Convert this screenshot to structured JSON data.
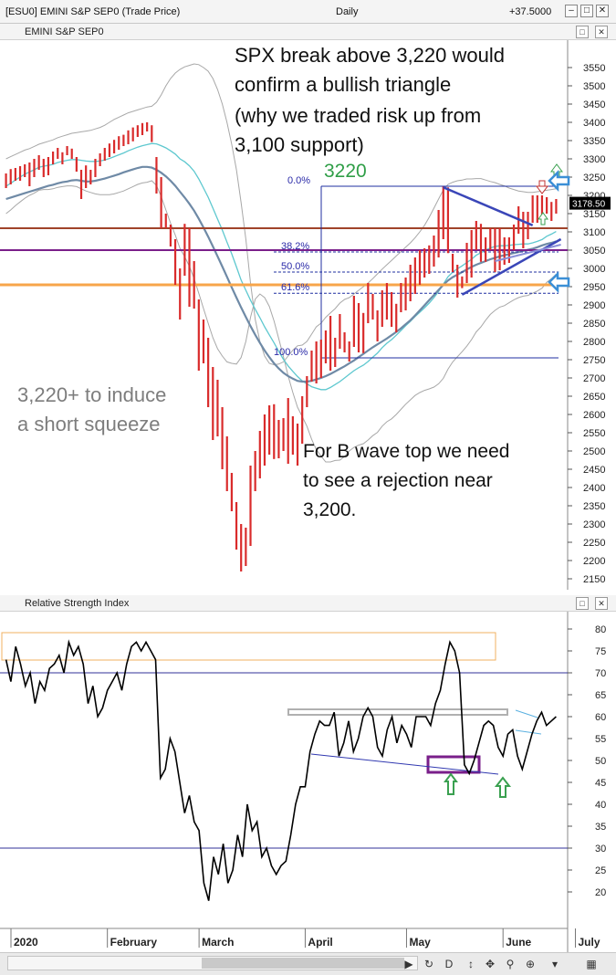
{
  "window": {
    "symbol": "[ESU0] EMINI S&P SEP0 (Trade Price)",
    "interval": "Daily",
    "change": "+37.5000"
  },
  "price_panel": {
    "title": "EMINI S&P SEP0",
    "last_price": "3178.50"
  },
  "rsi_panel": {
    "title": "Relative Strength Index"
  },
  "annotations": {
    "headline_1": "SPX break above 3,220 would",
    "headline_2": "confirm a bullish triangle",
    "headline_3": "(why we traded risk up from",
    "headline_4": "3,100 support)",
    "level_3220": "3220",
    "squeeze_1": "3,220+ to induce",
    "squeeze_2": "a short squeeze",
    "bwave_1": "For B wave top we need",
    "bwave_2": "to see a rejection near",
    "bwave_3": "3,200."
  },
  "fib_labels": [
    "0.0%",
    "38.2%",
    "50.0%",
    "61.6%",
    "100.0%"
  ],
  "price_axis_labels": [
    "3550",
    "3500",
    "3450",
    "3400",
    "3350",
    "3300",
    "3250",
    "3200",
    "3150",
    "3100",
    "3050",
    "3000",
    "2950",
    "2900",
    "2850",
    "2800",
    "2750",
    "2700",
    "2650",
    "2600",
    "2550",
    "2500",
    "2450",
    "2400",
    "2350",
    "2300",
    "2250",
    "2200",
    "2150"
  ],
  "rsi_axis_labels": [
    "80",
    "75",
    "70",
    "65",
    "60",
    "55",
    "50",
    "45",
    "40",
    "35",
    "30",
    "25",
    "20"
  ],
  "months": [
    "2020",
    "February",
    "March",
    "April",
    "May",
    "June",
    "July"
  ],
  "colors": {
    "candle_up": "#d92b2b",
    "ma_teal": "#5ec8cf",
    "ma_slate": "#6f8aa6",
    "bollinger": "#a8a8a8",
    "line_3100": "#a0432a",
    "line_3050": "#7a1f8a",
    "line_2950": "#f7a54a",
    "fib_line": "#1f2fa0",
    "rsi_line": "#000000",
    "level_label_green": "#2f9e47"
  },
  "chart_data": [
    {
      "type": "candlestick",
      "title": "EMINI S&P SEP0",
      "interval": "Daily",
      "ylim": [
        2100,
        3600
      ],
      "y_ticks": [
        2150,
        2200,
        2250,
        2300,
        2350,
        2400,
        2450,
        2500,
        2550,
        2600,
        2650,
        2700,
        2750,
        2800,
        2850,
        2900,
        2950,
        3000,
        3050,
        3100,
        3150,
        3200,
        3250,
        3300,
        3350,
        3400,
        3450,
        3500,
        3550
      ],
      "x_labels": [
        "2020",
        "February",
        "March",
        "April",
        "May",
        "June",
        "July"
      ],
      "last_price": 3178.5,
      "highs": [
        3260,
        3272,
        3275,
        3280,
        3285,
        3290,
        3300,
        3310,
        3300,
        3305,
        3320,
        3330,
        3318,
        3335,
        3328,
        3305,
        3270,
        3282,
        3270,
        3300,
        3315,
        3330,
        3342,
        3352,
        3362,
        3366,
        3378,
        3386,
        3392,
        3398,
        3400,
        3392,
        3305,
        3250,
        3150,
        3120,
        3080,
        3000,
        3122,
        3110,
        3020,
        2915,
        2860,
        2810,
        2730,
        2695,
        2620,
        2540,
        2440,
        2360,
        2300,
        2290,
        2460,
        2500,
        2555,
        2600,
        2625,
        2628,
        2585,
        2590,
        2645,
        2595,
        2575,
        2650,
        2705,
        2775,
        2800,
        2805,
        2830,
        2870,
        2810,
        2875,
        2825,
        2800,
        2925,
        2905,
        2878,
        2960,
        2930,
        2885,
        2940,
        2960,
        2935,
        2903,
        2960,
        2975,
        3010,
        3030,
        3050,
        3055,
        3063,
        3090,
        3160,
        3224,
        3222,
        3040,
        3010,
        2978,
        3070,
        3105,
        3130,
        3122,
        3085,
        3110,
        3110,
        3110,
        3085,
        3085,
        3120,
        3170,
        3155,
        3155,
        3200,
        3200,
        3200,
        3195,
        3182,
        3190
      ],
      "lows": [
        3220,
        3230,
        3240,
        3240,
        3250,
        3225,
        3250,
        3270,
        3250,
        3255,
        3285,
        3300,
        3285,
        3310,
        3300,
        3265,
        3190,
        3220,
        3230,
        3250,
        3280,
        3295,
        3305,
        3315,
        3325,
        3335,
        3340,
        3348,
        3360,
        3365,
        3375,
        3346,
        3205,
        3110,
        3110,
        3060,
        2955,
        2860,
        2980,
        2895,
        2890,
        2720,
        2740,
        2620,
        2530,
        2540,
        2450,
        2390,
        2335,
        2230,
        2170,
        2185,
        2240,
        2390,
        2425,
        2460,
        2490,
        2478,
        2480,
        2500,
        2465,
        2490,
        2460,
        2520,
        2620,
        2690,
        2685,
        2700,
        2740,
        2720,
        2730,
        2780,
        2770,
        2745,
        2785,
        2770,
        2768,
        2850,
        2860,
        2800,
        2840,
        2860,
        2840,
        2825,
        2880,
        2885,
        2910,
        2930,
        2955,
        2975,
        2985,
        3005,
        3030,
        3080,
        3042,
        2990,
        2920,
        2946,
        2960,
        2975,
        3050,
        3018,
        3018,
        3050,
        2990,
        2995,
        3010,
        3015,
        3050,
        3095,
        3055,
        3080,
        3125,
        3125,
        3148,
        3150,
        3130,
        3150
      ],
      "moving_average_20": [
        3225,
        3233,
        3242,
        3250,
        3258,
        3264,
        3270,
        3277,
        3280,
        3282,
        3285,
        3290,
        3293,
        3296,
        3298,
        3298,
        3296,
        3294,
        3293,
        3293,
        3294,
        3297,
        3301,
        3306,
        3311,
        3316,
        3322,
        3327,
        3332,
        3336,
        3339,
        3342,
        3341,
        3336,
        3330,
        3322,
        3313,
        3300,
        3292,
        3281,
        3266,
        3245,
        3220,
        3195,
        3165,
        3135,
        3105,
        3072,
        3040,
        3004,
        2968,
        2940,
        2913,
        2888,
        2865,
        2840,
        2818,
        2796,
        2773,
        2751,
        2733,
        2718,
        2704,
        2692,
        2684,
        2676,
        2672,
        2668,
        2668,
        2674,
        2682,
        2690,
        2700,
        2710,
        2720,
        2728,
        2735,
        2745,
        2757,
        2768,
        2783,
        2795,
        2805,
        2817,
        2830,
        2843,
        2855,
        2868,
        2880,
        2892,
        2905,
        2920,
        2937,
        2957,
        2977,
        2990,
        2999,
        3007,
        3016,
        3025,
        3036,
        3043,
        3050,
        3056,
        3060,
        3062,
        3062,
        3063,
        3065,
        3066,
        3067,
        3067,
        3070,
        3074,
        3079,
        3088,
        3094,
        3101
      ],
      "moving_average_50": [
        3190,
        3194,
        3198,
        3202,
        3206,
        3210,
        3214,
        3218,
        3222,
        3226,
        3229,
        3233,
        3236,
        3238,
        3241,
        3242,
        3240,
        3238,
        3238,
        3240,
        3243,
        3246,
        3250,
        3254,
        3258,
        3263,
        3267,
        3271,
        3275,
        3278,
        3278,
        3276,
        3270,
        3262,
        3252,
        3240,
        3226,
        3210,
        3194,
        3177,
        3158,
        3136,
        3112,
        3087,
        3060,
        3033,
        3005,
        2977,
        2948,
        2920,
        2893,
        2867,
        2842,
        2818,
        2796,
        2775,
        2757,
        2740,
        2726,
        2714,
        2705,
        2698,
        2692,
        2690,
        2690,
        2692,
        2696,
        2700,
        2705,
        2711,
        2718,
        2725,
        2732,
        2740,
        2748,
        2757,
        2766,
        2775,
        2784,
        2792,
        2800,
        2808,
        2817,
        2826,
        2836,
        2847,
        2858,
        2871,
        2885,
        2899,
        2913,
        2927,
        2941,
        2955,
        2967,
        2976,
        2983,
        2990,
        2997,
        3004,
        3010,
        3015,
        3020,
        3025,
        3029,
        3033,
        3036,
        3039,
        3042,
        3045,
        3048,
        3051,
        3054,
        3058,
        3063,
        3067,
        3070,
        3074
      ],
      "bollinger_upper": [
        3300,
        3306,
        3312,
        3318,
        3324,
        3328,
        3334,
        3340,
        3344,
        3348,
        3352,
        3358,
        3362,
        3366,
        3370,
        3372,
        3374,
        3376,
        3378,
        3382,
        3386,
        3392,
        3400,
        3408,
        3414,
        3420,
        3426,
        3430,
        3434,
        3438,
        3442,
        3444,
        3455,
        3475,
        3500,
        3520,
        3535,
        3545,
        3552,
        3556,
        3560,
        3558,
        3550,
        3540,
        3520,
        3490,
        3450,
        3400,
        3340,
        3270,
        3180,
        3080,
        2960,
        2860,
        2800,
        2760,
        2740,
        2736,
        2738,
        2744,
        2760,
        2776,
        2788,
        2790,
        2800,
        2820,
        2840,
        2850,
        2866,
        2878,
        2890,
        2905,
        2915,
        2920,
        2930,
        2940,
        2950,
        2960,
        2972,
        2985,
        2998,
        3010,
        3022,
        3034,
        3046,
        3058,
        3070,
        3084,
        3100,
        3118,
        3140,
        3165,
        3190,
        3215,
        3230,
        3236,
        3240,
        3242,
        3245,
        3245,
        3246,
        3246,
        3242,
        3238,
        3235,
        3230,
        3226,
        3220,
        3216,
        3212,
        3210,
        3208,
        3208,
        3210,
        3212,
        3214,
        3216,
        3218
      ],
      "bollinger_lower": [
        3150,
        3160,
        3172,
        3182,
        3192,
        3200,
        3206,
        3214,
        3216,
        3216,
        3218,
        3222,
        3224,
        3226,
        3226,
        3224,
        3218,
        3212,
        3208,
        3204,
        3202,
        3202,
        3202,
        3204,
        3208,
        3212,
        3218,
        3224,
        3230,
        3234,
        3236,
        3240,
        3227,
        3197,
        3160,
        3124,
        3091,
        3055,
        3032,
        3006,
        2972,
        2932,
        2890,
        2850,
        2810,
        2780,
        2760,
        2744,
        2740,
        2738,
        2756,
        2800,
        2866,
        2916,
        2930,
        2920,
        2896,
        2856,
        2808,
        2758,
        2706,
        2660,
        2620,
        2594,
        2568,
        2532,
        2504,
        2486,
        2470,
        2470,
        2474,
        2475,
        2485,
        2500,
        2510,
        2516,
        2520,
        2530,
        2542,
        2551,
        2568,
        2580,
        2588,
        2600,
        2614,
        2628,
        2640,
        2652,
        2660,
        2666,
        2670,
        2675,
        2684,
        2699,
        2724,
        2744,
        2758,
        2772,
        2787,
        2805,
        2826,
        2840,
        2858,
        2874,
        2885,
        2894,
        2898,
        2906,
        2914,
        2920,
        2924,
        2926,
        2932,
        2938,
        2946,
        2962,
        2972,
        2984
      ],
      "horizontal_levels": [
        {
          "value": 3110,
          "color": "#a0432a"
        },
        {
          "value": 3050,
          "color": "#7a1f8a"
        },
        {
          "value": 2955,
          "color": "#f7a54a"
        }
      ],
      "fibonacci": [
        {
          "label": "0.0%",
          "value": 3225
        },
        {
          "label": "38.2%",
          "value": 3045
        },
        {
          "label": "50.0%",
          "value": 2990
        },
        {
          "label": "61.6%",
          "value": 2932
        },
        {
          "label": "100.0%",
          "value": 2755
        }
      ],
      "key_level": 3220
    },
    {
      "type": "line",
      "title": "Relative Strength Index",
      "ylim": [
        15,
        82
      ],
      "y_ticks": [
        80,
        75,
        70,
        65,
        60,
        55,
        50,
        45,
        40,
        35,
        30,
        25,
        20
      ],
      "reference_lines": [
        70,
        30
      ],
      "values": [
        73,
        68,
        76,
        72,
        67,
        70,
        63,
        68,
        66,
        71,
        72,
        74,
        70,
        77,
        74,
        76,
        72,
        63,
        67,
        60,
        62,
        66,
        68,
        70,
        66,
        72,
        76,
        77,
        75,
        77,
        75,
        73,
        46,
        48,
        55,
        52,
        45,
        38,
        42,
        36,
        34,
        22,
        18,
        28,
        24,
        31,
        22,
        25,
        33,
        28,
        40,
        34,
        36,
        28,
        30,
        26,
        24,
        26,
        27,
        33,
        40,
        44,
        44,
        52,
        56,
        59,
        58,
        58,
        61,
        51,
        54,
        59,
        52,
        55,
        60,
        62,
        60,
        53,
        51,
        57,
        60,
        54,
        58,
        56,
        53,
        60,
        60,
        60,
        58,
        63,
        66,
        72,
        77,
        75,
        70,
        49,
        47,
        50,
        54,
        58,
        59,
        58,
        53,
        51,
        56,
        57,
        51,
        48,
        52,
        56,
        59,
        61,
        58,
        59,
        60
      ]
    }
  ]
}
